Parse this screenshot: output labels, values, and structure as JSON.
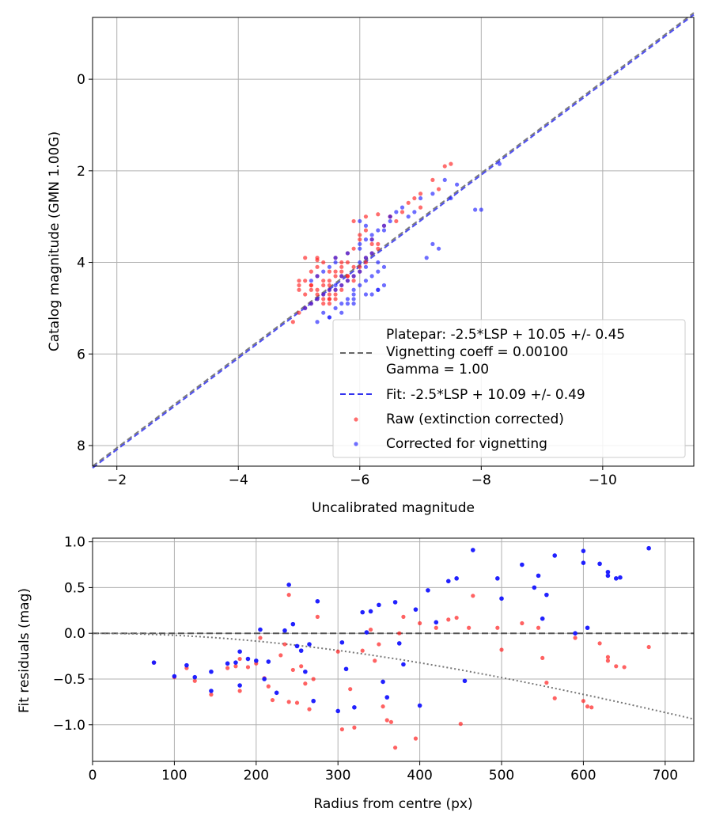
{
  "chart_data": [
    {
      "type": "scatter",
      "xlabel": "Uncalibrated magnitude",
      "ylabel": "Catalog magnitude (GMN 1.00G)",
      "xlim": [
        -1.6,
        -11.5
      ],
      "ylim": [
        8.45,
        -1.35
      ],
      "xticks": [
        -2,
        -4,
        -6,
        -8,
        -10
      ],
      "yticks": [
        0,
        2,
        4,
        6,
        8
      ],
      "xtick_labels": [
        "−2",
        "−4",
        "−6",
        "−8",
        "−10"
      ],
      "ytick_labels": [
        "0",
        "2",
        "4",
        "6",
        "8"
      ],
      "grid": true,
      "legend_position": "lower-right",
      "lines": [
        {
          "name": "Platepar: -2.5*LSP + 10.05 +/- 0.45\nVignetting coeff = 0.00100\nGamma = 1.00",
          "slope": 1,
          "intercept": 10.05,
          "style": "dashed",
          "color": "#666666"
        },
        {
          "name": "Fit: -2.5*LSP + 10.09 +/- 0.49",
          "slope": 1,
          "intercept": 10.09,
          "style": "dashed",
          "color": "#3333ee"
        }
      ],
      "series": [
        {
          "name": "Raw (extinction corrected)",
          "color": "#ff2020",
          "x": [
            -4.9,
            -5.0,
            -5.1,
            -5.2,
            -5.0,
            -5.3,
            -5.1,
            -5.2,
            -5.0,
            -5.3,
            -5.4,
            -5.5,
            -5.2,
            -5.3,
            -5.4,
            -5.5,
            -5.6,
            -5.3,
            -5.4,
            -5.5,
            -5.6,
            -5.7,
            -5.8,
            -5.5,
            -5.6,
            -5.7,
            -5.8,
            -5.9,
            -5.4,
            -5.5,
            -5.6,
            -5.7,
            -5.8,
            -5.9,
            -6.0,
            -5.6,
            -5.7,
            -5.8,
            -5.9,
            -6.0,
            -6.1,
            -6.2,
            -5.8,
            -5.9,
            -6.0,
            -6.1,
            -6.2,
            -6.3,
            -6.0,
            -6.1,
            -6.2,
            -6.3,
            -6.4,
            -6.5,
            -6.6,
            -6.7,
            -6.8,
            -7.0,
            -7.2,
            -7.3,
            -7.5,
            -7.4,
            -6.9,
            -7.0,
            -5.0,
            -5.1,
            -5.2,
            -5.3,
            -5.4,
            -5.5,
            -5.6,
            -5.7,
            -5.2,
            -5.3,
            -5.4,
            -5.5,
            -5.9,
            -6.1,
            -6.3,
            -6.5,
            -5.1,
            -5.3,
            -5.5,
            -5.7
          ],
          "y": [
            5.3,
            5.1,
            5.0,
            4.9,
            4.6,
            4.8,
            4.7,
            4.5,
            4.4,
            4.3,
            4.5,
            4.6,
            4.2,
            4.1,
            4.0,
            4.2,
            4.3,
            3.9,
            4.4,
            4.5,
            4.6,
            4.1,
            4.0,
            4.7,
            4.8,
            4.2,
            4.3,
            4.1,
            4.9,
            4.8,
            4.7,
            4.5,
            4.4,
            4.3,
            4.2,
            3.9,
            4.0,
            3.8,
            3.7,
            4.1,
            4.0,
            3.6,
            4.3,
            4.4,
            3.5,
            3.9,
            3.8,
            3.7,
            3.4,
            3.3,
            3.5,
            3.6,
            3.2,
            3.0,
            3.1,
            2.9,
            2.7,
            2.5,
            2.2,
            2.4,
            1.85,
            1.9,
            2.6,
            2.8,
            4.5,
            4.4,
            4.6,
            4.7,
            4.8,
            4.9,
            4.2,
            4.3,
            4.5,
            4.6,
            4.7,
            4.8,
            3.1,
            3.0,
            2.95,
            3.0,
            3.9,
            3.95,
            4.4,
            4.6
          ]
        },
        {
          "name": "Corrected for vignetting",
          "color": "#2020ff",
          "x": [
            -5.1,
            -5.2,
            -5.3,
            -5.4,
            -5.5,
            -5.6,
            -5.2,
            -5.3,
            -5.4,
            -5.5,
            -5.6,
            -5.7,
            -5.4,
            -5.5,
            -5.6,
            -5.7,
            -5.8,
            -5.9,
            -5.6,
            -5.7,
            -5.8,
            -5.9,
            -6.0,
            -6.1,
            -5.8,
            -5.9,
            -6.0,
            -6.1,
            -6.2,
            -5.9,
            -6.0,
            -6.1,
            -6.2,
            -6.3,
            -6.4,
            -6.0,
            -6.1,
            -6.2,
            -6.3,
            -6.4,
            -6.5,
            -6.2,
            -6.3,
            -6.4,
            -6.5,
            -6.6,
            -6.7,
            -6.8,
            -6.9,
            -7.0,
            -7.2,
            -7.4,
            -7.5,
            -7.6,
            -7.9,
            -8.0,
            -8.3,
            -7.3,
            -7.1,
            -7.2,
            -5.3,
            -5.5,
            -5.7,
            -5.9,
            -6.1,
            -6.3,
            -6.0,
            -6.1,
            -6.2,
            -6.3,
            -5.6,
            -5.8,
            -6.0,
            -6.4
          ],
          "y": [
            5.0,
            4.9,
            4.8,
            4.7,
            4.6,
            4.5,
            4.4,
            4.3,
            4.2,
            4.1,
            4.0,
            4.3,
            5.1,
            5.2,
            5.0,
            4.9,
            4.8,
            4.7,
            4.6,
            4.5,
            4.4,
            4.3,
            4.2,
            4.1,
            4.9,
            4.8,
            4.0,
            3.9,
            3.8,
            4.6,
            4.5,
            4.4,
            4.3,
            4.2,
            4.1,
            3.6,
            3.5,
            3.4,
            3.3,
            3.2,
            3.1,
            4.7,
            4.6,
            4.5,
            3.0,
            2.9,
            2.8,
            3.0,
            2.9,
            2.6,
            2.5,
            2.2,
            2.6,
            2.3,
            2.85,
            2.85,
            1.85,
            3.7,
            3.9,
            3.6,
            5.3,
            5.2,
            5.1,
            4.9,
            4.7,
            4.6,
            3.1,
            3.2,
            3.5,
            4.0,
            3.9,
            3.8,
            3.7,
            3.3
          ]
        }
      ]
    },
    {
      "type": "scatter",
      "xlabel": "Radius from centre (px)",
      "ylabel": "Fit residuals (mag)",
      "xlim": [
        0,
        735
      ],
      "ylim": [
        -1.4,
        1.04
      ],
      "xticks": [
        0,
        100,
        200,
        300,
        400,
        500,
        600,
        700
      ],
      "yticks": [
        1.0,
        0.5,
        0.0,
        -0.5,
        -1.0
      ],
      "xtick_labels": [
        "0",
        "100",
        "200",
        "300",
        "400",
        "500",
        "600",
        "700"
      ],
      "ytick_labels": [
        "1.0",
        "0.5",
        "0.0",
        "−0.5",
        "−1.0"
      ],
      "grid": true,
      "reference_line": {
        "y": 0.0,
        "style": "dashed",
        "color": "#555555"
      },
      "vignetting_curve": {
        "coeff": 0.001,
        "style": "dotted",
        "color": "#777777"
      },
      "series": [
        {
          "name": "Raw (extinction corrected)",
          "color": "#ff2020",
          "x": [
            75,
            100,
            115,
            125,
            145,
            165,
            175,
            180,
            180,
            190,
            200,
            205,
            210,
            215,
            220,
            230,
            235,
            240,
            240,
            245,
            250,
            255,
            260,
            265,
            270,
            275,
            300,
            305,
            315,
            320,
            330,
            340,
            345,
            350,
            355,
            360,
            365,
            370,
            375,
            380,
            395,
            400,
            420,
            435,
            445,
            450,
            460,
            465,
            495,
            500,
            525,
            545,
            550,
            555,
            565,
            590,
            600,
            605,
            610,
            620,
            630,
            630,
            640,
            650,
            680
          ],
          "y": [
            -0.32,
            -0.48,
            -0.38,
            -0.52,
            -0.67,
            -0.38,
            -0.36,
            -0.28,
            -0.63,
            -0.37,
            -0.33,
            -0.05,
            -0.49,
            -0.58,
            -0.73,
            -0.24,
            -0.12,
            0.42,
            -0.75,
            -0.4,
            -0.76,
            -0.36,
            -0.55,
            -0.83,
            -0.5,
            0.18,
            -0.2,
            -1.05,
            -0.61,
            -1.03,
            -0.19,
            0.04,
            -0.3,
            -0.12,
            -0.8,
            -0.95,
            -0.97,
            -1.25,
            0.0,
            0.18,
            -1.15,
            0.11,
            0.06,
            0.15,
            0.17,
            -0.99,
            0.06,
            0.41,
            0.06,
            -0.18,
            0.11,
            0.06,
            -0.27,
            -0.54,
            -0.71,
            -0.05,
            -0.74,
            -0.8,
            -0.81,
            -0.11,
            -0.26,
            -0.3,
            -0.36,
            -0.37,
            -0.15
          ],
          "marker_size": 2.6
        },
        {
          "name": "Corrected for vignetting",
          "color": "#1515ff",
          "x": [
            75,
            100,
            115,
            125,
            145,
            145,
            165,
            175,
            180,
            180,
            190,
            200,
            205,
            210,
            215,
            225,
            235,
            240,
            245,
            250,
            255,
            260,
            265,
            270,
            275,
            300,
            305,
            310,
            320,
            330,
            335,
            340,
            350,
            355,
            360,
            370,
            375,
            380,
            395,
            400,
            410,
            420,
            435,
            445,
            455,
            465,
            495,
            500,
            525,
            540,
            545,
            550,
            555,
            565,
            590,
            600,
            600,
            605,
            620,
            630,
            630,
            640,
            645,
            680
          ],
          "y": [
            -0.32,
            -0.47,
            -0.35,
            -0.48,
            -0.42,
            -0.63,
            -0.33,
            -0.32,
            -0.2,
            -0.57,
            -0.28,
            -0.3,
            0.04,
            -0.5,
            -0.31,
            -0.65,
            0.03,
            0.53,
            0.1,
            -0.14,
            -0.19,
            -0.42,
            -0.12,
            -0.74,
            0.35,
            -0.85,
            -0.1,
            -0.39,
            -0.81,
            0.23,
            0.01,
            0.24,
            0.31,
            -0.53,
            -0.7,
            0.34,
            -0.11,
            -0.34,
            0.26,
            -0.79,
            0.47,
            0.12,
            0.57,
            0.6,
            -0.52,
            0.91,
            0.6,
            0.38,
            0.75,
            0.5,
            0.63,
            0.16,
            0.42,
            0.85,
            0.0,
            0.9,
            0.77,
            0.06,
            0.76,
            0.67,
            0.63,
            0.6,
            0.61,
            0.93
          ],
          "marker_size": 2.8
        }
      ]
    }
  ]
}
